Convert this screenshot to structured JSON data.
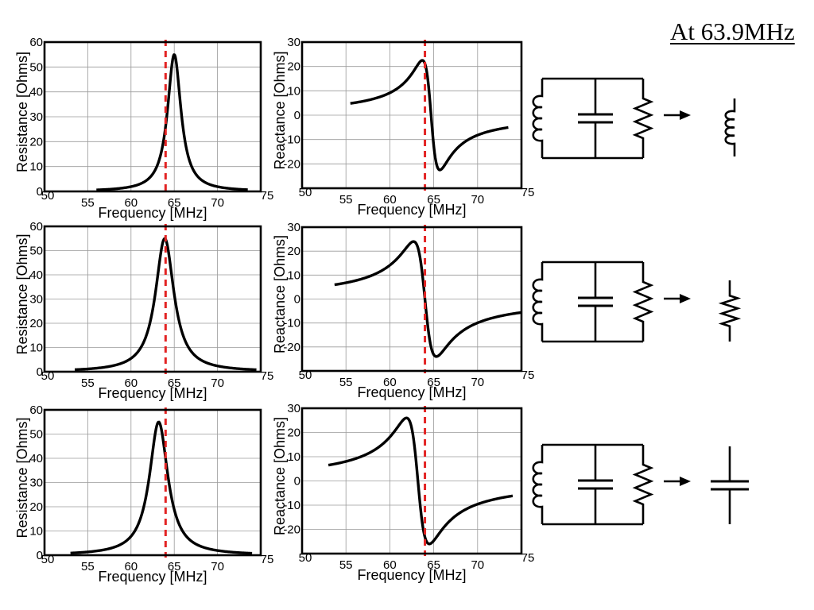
{
  "heading": "At 63.9MHz",
  "colors": {
    "curve": "#000000",
    "marker": "#e32424",
    "grid": "#9a9a9a"
  },
  "arrow_icon": "right-arrow-icon",
  "chart_data": [
    {
      "type": "line",
      "panel": "resistance",
      "row": 1,
      "xlabel": "Frequency [MHz]",
      "ylabel": "Resistance [Ohms]",
      "xlim": [
        50,
        75
      ],
      "ylim": [
        0,
        60
      ],
      "xticks": [
        "50",
        "55",
        "60",
        "65",
        "70",
        "75"
      ],
      "yticks": [
        "0",
        "10",
        "20",
        "30",
        "40",
        "50",
        "60"
      ],
      "marker_x": 64,
      "curve": {
        "kind": "resistance",
        "f0": 65.0,
        "peak": 55,
        "half_width": 0.95,
        "x_start": 56,
        "x_end": 73.5
      }
    },
    {
      "type": "line",
      "panel": "reactance",
      "row": 1,
      "xlabel": "Frequency [MHz]",
      "ylabel": "Reactance [Ohms]",
      "xlim": [
        50,
        75
      ],
      "ylim": [
        -30,
        30
      ],
      "xticks": [
        "50",
        "55",
        "60",
        "65",
        "70",
        "75"
      ],
      "yticks": [
        "-20",
        "-10",
        "0",
        "10",
        "20",
        "30"
      ],
      "marker_x": 64,
      "curve": {
        "kind": "reactance",
        "f0": 64.7,
        "peak": 45,
        "half_width": 1.0,
        "x_start": 55.5,
        "x_end": 73.5
      }
    },
    {
      "type": "line",
      "panel": "resistance",
      "row": 2,
      "xlabel": "Frequency [MHz]",
      "ylabel": "Resistance [Ohms]",
      "xlim": [
        50,
        75
      ],
      "ylim": [
        0,
        60
      ],
      "xticks": [
        "50",
        "55",
        "60",
        "65",
        "70",
        "75"
      ],
      "yticks": [
        "0",
        "10",
        "20",
        "30",
        "40",
        "50",
        "60"
      ],
      "marker_x": 64,
      "curve": {
        "kind": "resistance",
        "f0": 63.9,
        "peak": 55,
        "half_width": 1.3,
        "x_start": 53.5,
        "x_end": 74.5
      }
    },
    {
      "type": "line",
      "panel": "reactance",
      "row": 2,
      "xlabel": "Frequency [MHz]",
      "ylabel": "Reactance [Ohms]",
      "xlim": [
        50,
        75
      ],
      "ylim": [
        -30,
        30
      ],
      "xticks": [
        "50",
        "55",
        "60",
        "65",
        "70",
        "75"
      ],
      "yticks": [
        "-20",
        "-10",
        "0",
        "10",
        "20",
        "30"
      ],
      "marker_x": 64,
      "curve": {
        "kind": "reactance",
        "f0": 64.0,
        "peak": 48,
        "half_width": 1.3,
        "x_start": 53.7,
        "x_end": 75
      }
    },
    {
      "type": "line",
      "panel": "resistance",
      "row": 3,
      "xlabel": "Frequency [MHz]",
      "ylabel": "Resistance [Ohms]",
      "xlim": [
        50,
        75
      ],
      "ylim": [
        0,
        60
      ],
      "xticks": [
        "50",
        "55",
        "60",
        "65",
        "70",
        "75"
      ],
      "yticks": [
        "0",
        "10",
        "20",
        "30",
        "40",
        "50",
        "60"
      ],
      "marker_x": 64,
      "curve": {
        "kind": "resistance",
        "f0": 63.2,
        "peak": 55,
        "half_width": 1.3,
        "x_start": 53,
        "x_end": 74
      }
    },
    {
      "type": "line",
      "panel": "reactance",
      "row": 3,
      "xlabel": "Frequency [MHz]",
      "ylabel": "Reactance [Ohms]",
      "xlim": [
        50,
        75
      ],
      "ylim": [
        -30,
        30
      ],
      "xticks": [
        "50",
        "55",
        "60",
        "65",
        "70",
        "75"
      ],
      "yticks": [
        "-20",
        "-10",
        "0",
        "10",
        "20",
        "30"
      ],
      "marker_x": 64,
      "curve": {
        "kind": "reactance",
        "f0": 63.2,
        "peak": 52,
        "half_width": 1.3,
        "x_start": 53,
        "x_end": 74
      }
    }
  ],
  "circuits": [
    {
      "row": 1,
      "parallel": [
        "inductor-icon",
        "capacitor-icon",
        "resistor-icon"
      ],
      "equivalent": "inductor-icon"
    },
    {
      "row": 2,
      "parallel": [
        "inductor-icon",
        "capacitor-icon",
        "resistor-icon"
      ],
      "equivalent": "resistor-icon"
    },
    {
      "row": 3,
      "parallel": [
        "inductor-icon",
        "capacitor-icon",
        "resistor-icon"
      ],
      "equivalent": "capacitor-icon"
    }
  ]
}
